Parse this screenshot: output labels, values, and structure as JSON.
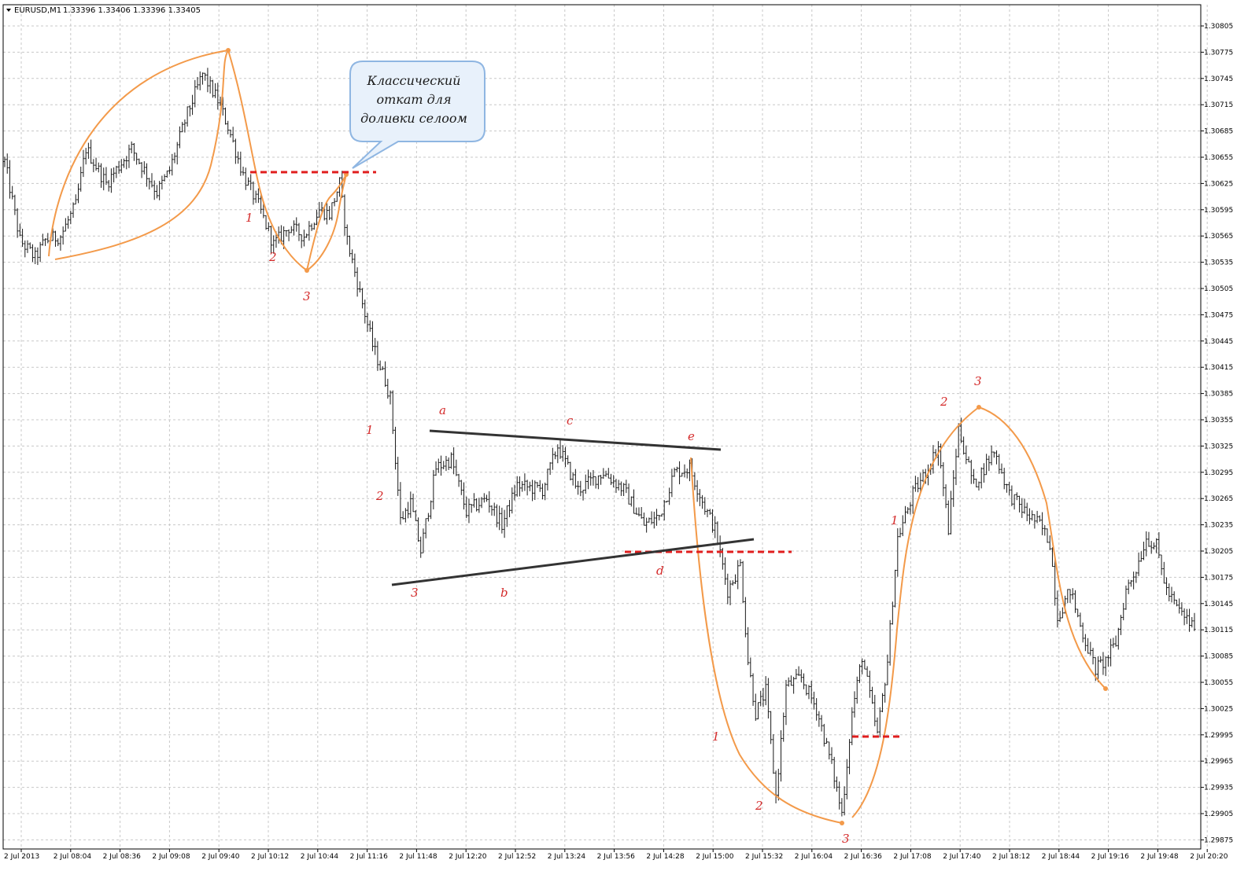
{
  "header": {
    "symbol": "EURUSD,M1",
    "ohlc": "1.33396 1.33406 1.33396 1.33405"
  },
  "colors": {
    "background": "#ffffff",
    "grid": "#c8c8c8",
    "candle": "#1a1a1a",
    "wave": "#f39a4a",
    "level": "#e01e1e",
    "trendline": "#333333",
    "label": "#d42a2a",
    "bubble_fill": "#e8f1fb",
    "bubble_stroke": "#8fb6e2"
  },
  "callout": {
    "lines": [
      "Классический",
      "откат для",
      "доливки селоом"
    ]
  },
  "chart_data": {
    "type": "candlestick",
    "title": "",
    "xlabel": "",
    "ylabel": "",
    "ylim": [
      1.2986,
      1.3082
    ],
    "grid": true,
    "y_ticks": [
      "1.30805",
      "1.30775",
      "1.30745",
      "1.30715",
      "1.30685",
      "1.30655",
      "1.30625",
      "1.30595",
      "1.30565",
      "1.30535",
      "1.30505",
      "1.30475",
      "1.30445",
      "1.30415",
      "1.30385",
      "1.30355",
      "1.30325",
      "1.30295",
      "1.30265",
      "1.30235",
      "1.30205",
      "1.30175",
      "1.30145",
      "1.30115",
      "1.30085",
      "1.30055",
      "1.30025",
      "1.29995",
      "1.29965",
      "1.29935",
      "1.29905",
      "1.29875"
    ],
    "x_ticks": [
      "2 Jul 2013",
      "2 Jul 08:04",
      "2 Jul 08:36",
      "2 Jul 09:08",
      "2 Jul 09:40",
      "2 Jul 10:12",
      "2 Jul 10:44",
      "2 Jul 11:16",
      "2 Jul 11:48",
      "2 Jul 12:20",
      "2 Jul 12:52",
      "2 Jul 13:24",
      "2 Jul 13:56",
      "2 Jul 14:28",
      "2 Jul 15:00",
      "2 Jul 15:32",
      "2 Jul 16:04",
      "2 Jul 16:36",
      "2 Jul 17:08",
      "2 Jul 17:40",
      "2 Jul 18:12",
      "2 Jul 18:44",
      "2 Jul 19:16",
      "2 Jul 19:48",
      "2 Jul 20:20"
    ],
    "price_path": [
      [
        0,
        1.3065
      ],
      [
        6,
        1.3056
      ],
      [
        12,
        1.3054
      ],
      [
        16,
        1.3056
      ],
      [
        22,
        1.30565
      ],
      [
        28,
        1.306
      ],
      [
        32,
        1.30665
      ],
      [
        40,
        1.30625
      ],
      [
        50,
        1.30665
      ],
      [
        60,
        1.30615
      ],
      [
        65,
        1.3064
      ],
      [
        72,
        1.30705
      ],
      [
        78,
        1.3075
      ],
      [
        84,
        1.3072
      ],
      [
        88,
        1.3069
      ],
      [
        94,
        1.30635
      ],
      [
        100,
        1.306
      ],
      [
        106,
        1.30555
      ],
      [
        112,
        1.30575
      ],
      [
        118,
        1.30565
      ],
      [
        124,
        1.30595
      ],
      [
        128,
        1.3059
      ],
      [
        132,
        1.30625
      ],
      [
        135,
        1.3056
      ],
      [
        140,
        1.305
      ],
      [
        145,
        1.3044
      ],
      [
        150,
        1.304
      ],
      [
        152,
        1.3038
      ],
      [
        156,
        1.3024
      ],
      [
        160,
        1.3026
      ],
      [
        164,
        1.30205
      ],
      [
        170,
        1.303
      ],
      [
        176,
        1.3031
      ],
      [
        182,
        1.3025
      ],
      [
        190,
        1.30265
      ],
      [
        196,
        1.30235
      ],
      [
        202,
        1.3028
      ],
      [
        212,
        1.30275
      ],
      [
        218,
        1.30325
      ],
      [
        226,
        1.30275
      ],
      [
        236,
        1.30295
      ],
      [
        244,
        1.30275
      ],
      [
        252,
        1.30235
      ],
      [
        258,
        1.30245
      ],
      [
        264,
        1.30295
      ],
      [
        270,
        1.303
      ],
      [
        276,
        1.30255
      ],
      [
        280,
        1.3023
      ],
      [
        285,
        1.3016
      ],
      [
        290,
        1.3019
      ],
      [
        293,
        1.3008
      ],
      [
        296,
        1.3002
      ],
      [
        300,
        1.30045
      ],
      [
        304,
        1.29925
      ],
      [
        308,
        1.3005
      ],
      [
        314,
        1.3006
      ],
      [
        320,
        1.30025
      ],
      [
        326,
        1.2996
      ],
      [
        330,
        1.29905
      ],
      [
        334,
        1.3002
      ],
      [
        338,
        1.30085
      ],
      [
        344,
        1.29995
      ],
      [
        348,
        1.3008
      ],
      [
        352,
        1.3022
      ],
      [
        358,
        1.3027
      ],
      [
        364,
        1.303
      ],
      [
        368,
        1.30325
      ],
      [
        372,
        1.3023
      ],
      [
        376,
        1.30345
      ],
      [
        382,
        1.3028
      ],
      [
        390,
        1.3032
      ],
      [
        396,
        1.3027
      ],
      [
        402,
        1.3025
      ],
      [
        408,
        1.30235
      ],
      [
        412,
        1.30215
      ],
      [
        415,
        1.3013
      ],
      [
        420,
        1.3016
      ],
      [
        425,
        1.3011
      ],
      [
        430,
        1.3007
      ],
      [
        434,
        1.3008
      ],
      [
        438,
        1.301
      ],
      [
        442,
        1.3016
      ],
      [
        446,
        1.30185
      ],
      [
        450,
        1.3022
      ],
      [
        454,
        1.3021
      ],
      [
        458,
        1.3016
      ],
      [
        462,
        1.3014
      ],
      [
        468,
        1.3012
      ]
    ],
    "annotations": {
      "wave_numbers": [
        "1",
        "2",
        "3",
        "1",
        "2",
        "3",
        "1",
        "2",
        "3",
        "1",
        "2",
        "3"
      ],
      "triangle_points": [
        "a",
        "b",
        "c",
        "d",
        "e"
      ]
    }
  }
}
